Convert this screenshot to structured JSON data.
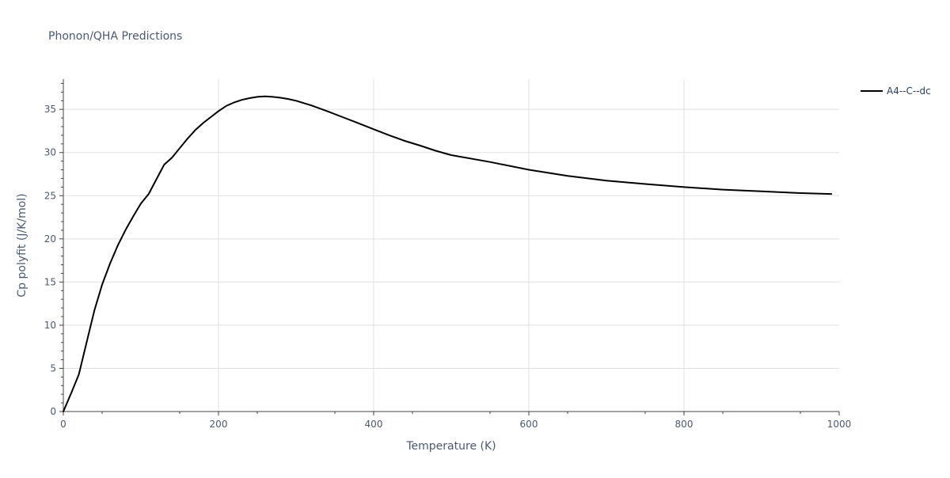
{
  "chart_data": {
    "type": "line",
    "title": "Phonon/QHA Predictions",
    "xlabel": "Temperature (K)",
    "ylabel": "Cp polyfit (J/K/mol)",
    "xlim": [
      0,
      1000
    ],
    "ylim": [
      0,
      38.5
    ],
    "x_ticks": [
      0,
      200,
      400,
      600,
      800,
      1000
    ],
    "y_ticks": [
      0,
      5,
      10,
      15,
      20,
      25,
      30,
      35
    ],
    "x_tick_labels": [
      "0",
      "200",
      "400",
      "600",
      "800",
      "1000"
    ],
    "y_tick_labels": [
      "0",
      "5",
      "10",
      "15",
      "20",
      "25",
      "30",
      "35"
    ],
    "grid": true,
    "legend_position": "top-right",
    "series": [
      {
        "name": "A4--C--dc",
        "color": "#000000",
        "x": [
          0,
          10,
          20,
          30,
          40,
          50,
          60,
          70,
          80,
          90,
          100,
          110,
          120,
          130,
          140,
          150,
          160,
          170,
          180,
          190,
          200,
          210,
          220,
          230,
          240,
          250,
          260,
          270,
          280,
          290,
          300,
          320,
          340,
          360,
          380,
          400,
          420,
          440,
          460,
          480,
          500,
          550,
          600,
          650,
          700,
          750,
          800,
          850,
          900,
          950,
          990
        ],
        "y": [
          0,
          2.1,
          4.3,
          8.0,
          11.7,
          14.7,
          17.1,
          19.2,
          21.0,
          22.6,
          24.1,
          25.2,
          26.9,
          28.6,
          29.4,
          30.5,
          31.6,
          32.6,
          33.4,
          34.1,
          34.8,
          35.4,
          35.8,
          36.1,
          36.3,
          36.45,
          36.5,
          36.45,
          36.35,
          36.2,
          36.0,
          35.45,
          34.8,
          34.1,
          33.4,
          32.7,
          32.0,
          31.35,
          30.8,
          30.2,
          29.7,
          28.9,
          28.0,
          27.3,
          26.75,
          26.35,
          26.0,
          25.7,
          25.5,
          25.3,
          25.2
        ]
      }
    ]
  }
}
